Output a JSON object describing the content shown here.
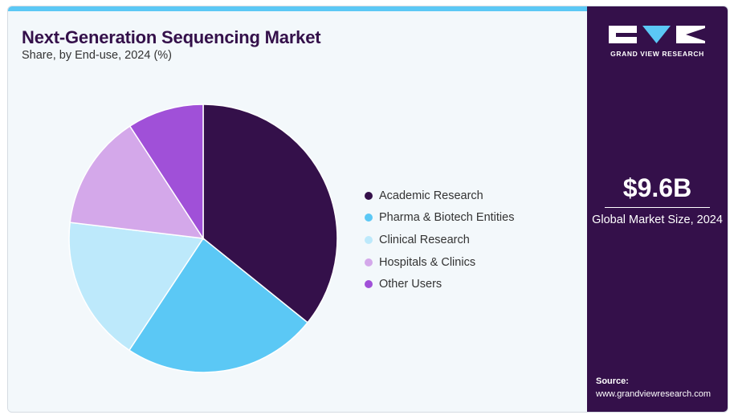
{
  "header": {
    "title": "Next-Generation Sequencing Market",
    "subtitle": "Share, by End-use, 2024 (%)"
  },
  "chart_data": {
    "type": "pie",
    "title": "Next-Generation Sequencing Market",
    "subtitle": "Share, by End-use, 2024 (%)",
    "categories": [
      "Academic Research",
      "Pharma & Biotech Entities",
      "Clinical Research",
      "Hospitals & Clinics",
      "Other Users"
    ],
    "values": [
      35.8,
      23.5,
      17.6,
      13.9,
      9.2
    ],
    "colors": [
      "#34104a",
      "#5bc8f5",
      "#bde9fb",
      "#d4a8ea",
      "#a050d8"
    ],
    "start_angle_deg": 0,
    "direction": "clockwise",
    "legend_position": "right"
  },
  "sidebar": {
    "brand": "GRAND VIEW RESEARCH",
    "market_value": "$9.6B",
    "market_label": "Global Market Size, 2024",
    "source_label": "Source:",
    "source_url": "www.grandviewresearch.com"
  }
}
